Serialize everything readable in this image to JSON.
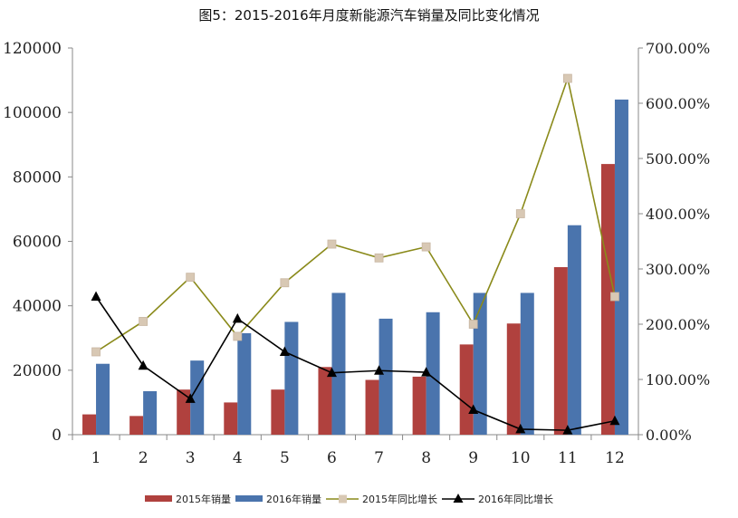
{
  "chart_data": {
    "type": "bar",
    "title": "图5：2015-2016年月度新能源汽车销量及同比变化情况",
    "categories": [
      "1",
      "2",
      "3",
      "4",
      "5",
      "6",
      "7",
      "8",
      "9",
      "10",
      "11",
      "12"
    ],
    "series": [
      {
        "name": "2015年销量",
        "kind": "bar",
        "axis": "left",
        "color": "#b0413e",
        "values": [
          6300,
          5800,
          14000,
          10000,
          14000,
          21000,
          17000,
          18000,
          28000,
          34500,
          52000,
          84000
        ]
      },
      {
        "name": "2016年销量",
        "kind": "bar",
        "axis": "left",
        "color": "#4a74ad",
        "values": [
          22000,
          13500,
          23000,
          31500,
          35000,
          44000,
          36000,
          38000,
          44000,
          44000,
          65000,
          104000
        ]
      },
      {
        "name": "2015年同比增长",
        "kind": "line",
        "axis": "right",
        "color": "#8a8a1a",
        "marker": "square",
        "markerColor": "#d8c8b4",
        "values": [
          150,
          205,
          285,
          178,
          275,
          345,
          320,
          340,
          200,
          400,
          645,
          250
        ]
      },
      {
        "name": "2016年同比增长",
        "kind": "line",
        "axis": "right",
        "color": "#000000",
        "marker": "triangle",
        "markerColor": "#000000",
        "values": [
          250,
          125,
          65,
          210,
          150,
          112,
          116,
          113,
          45,
          10,
          8,
          25
        ]
      }
    ],
    "yleft": {
      "min": 0,
      "max": 120000,
      "ticks": [
        "0",
        "20000",
        "40000",
        "60000",
        "80000",
        "100000",
        "120000"
      ]
    },
    "yright": {
      "min": 0,
      "max": 700,
      "ticks": [
        "0.00%",
        "100.00%",
        "200.00%",
        "300.00%",
        "400.00%",
        "500.00%",
        "600.00%",
        "700.00%"
      ]
    },
    "legend_position": "bottom",
    "grid": false
  }
}
